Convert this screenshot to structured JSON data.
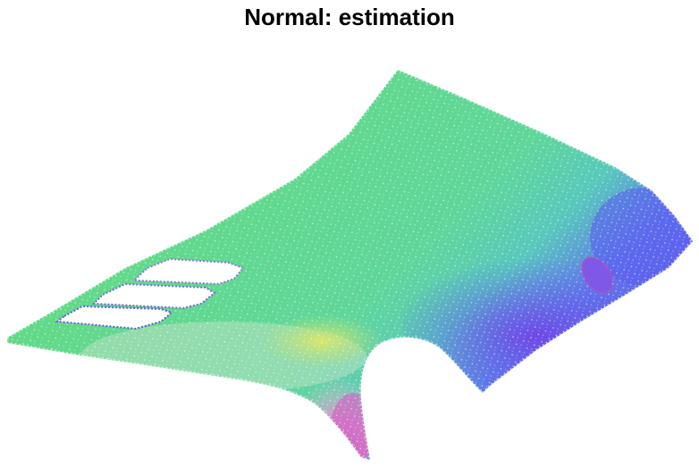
{
  "title": "Normal: estimation",
  "point_cloud": {
    "object": "car-hood",
    "colormap": "surface-normal-rgb",
    "colors": {
      "green": "#5ad38a",
      "teal": "#55c9b0",
      "blue": "#5a5ef0",
      "violet": "#7a55e8",
      "pink": "#d070c0",
      "yellow": "#c8e05a"
    }
  }
}
